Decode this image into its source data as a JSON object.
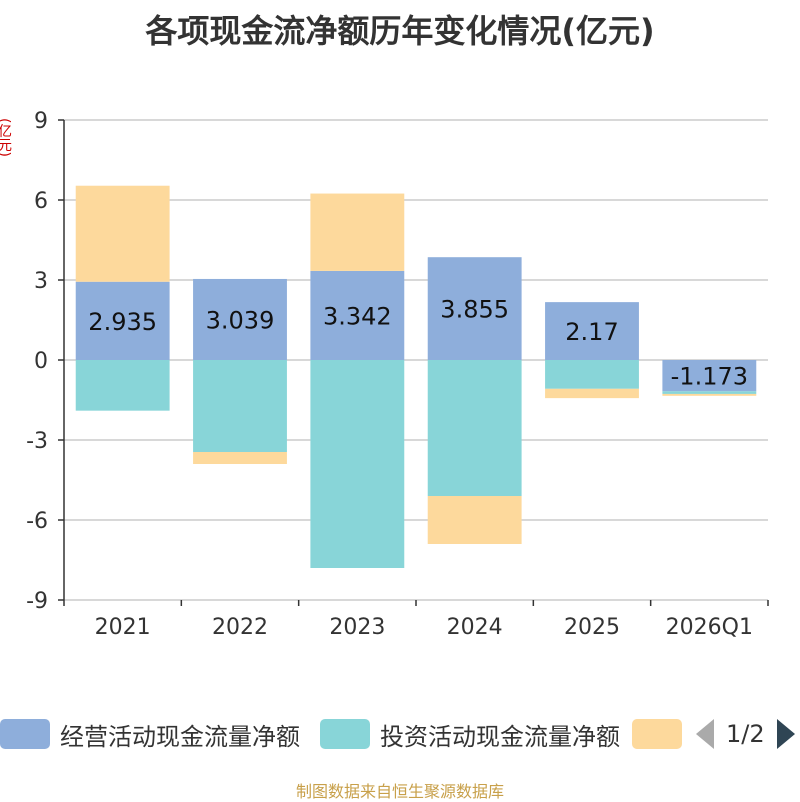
{
  "title": "各项现金流净额历年变化情况(亿元)",
  "unit_label": "(亿元)",
  "footer": "制图数据来自恒生聚源数据库",
  "colors": {
    "operating": "#8eaedb",
    "investing": "#88d5d8",
    "financing": "#fdd99c",
    "axis": "#333333",
    "grid": "#cccccc"
  },
  "legend": {
    "items": [
      {
        "label": "经营活动现金流量净额",
        "color_key": "operating"
      },
      {
        "label": "投资活动现金流量净额",
        "color_key": "investing"
      },
      {
        "label": "",
        "color_key": "financing"
      }
    ],
    "page": "1/2"
  },
  "chart_data": {
    "type": "bar",
    "stacked": true,
    "categories": [
      "2021",
      "2022",
      "2023",
      "2024",
      "2025",
      "2026Q1"
    ],
    "ylim": [
      -9,
      9
    ],
    "yticks": [
      9,
      6,
      3,
      0,
      -3,
      -6,
      -9
    ],
    "grid": true,
    "series": [
      {
        "name": "经营活动现金流量净额",
        "color_key": "operating",
        "values": [
          2.935,
          3.039,
          3.342,
          3.855,
          2.17,
          -1.173
        ],
        "labels": [
          "2.935",
          "3.039",
          "3.342",
          "3.855",
          "2.17",
          "-1.173"
        ]
      },
      {
        "name": "投资活动现金流量净额",
        "color_key": "investing",
        "values": [
          -1.9,
          -3.45,
          -7.8,
          -5.1,
          -1.08,
          -0.1
        ]
      },
      {
        "color_key": "financing",
        "values": [
          3.6,
          -0.45,
          2.9,
          -1.8,
          -0.35,
          -0.07
        ]
      }
    ]
  }
}
